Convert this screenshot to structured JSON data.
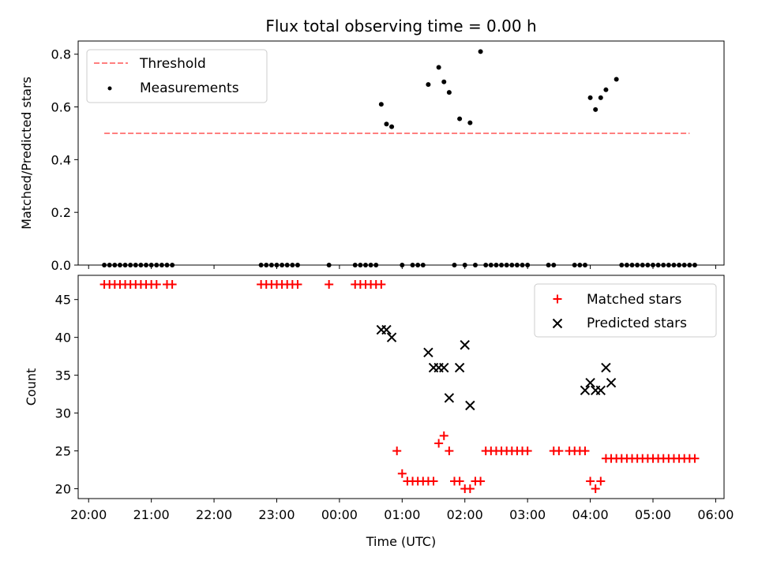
{
  "chart_data": [
    {
      "type": "scatter",
      "title": "Flux total observing time = 0.00 h",
      "xlabel": "",
      "ylabel": "Matched/Predicted stars",
      "ylim": [
        0,
        0.85
      ],
      "xlim": [
        "19:50",
        "06:08"
      ],
      "yticks": [
        "0.0",
        "0.2",
        "0.4",
        "0.6",
        "0.8"
      ],
      "ytick_values": [
        0,
        0.2,
        0.4,
        0.6,
        0.8
      ],
      "legend_position": "top-left",
      "threshold": {
        "name": "Threshold",
        "value": 0.5,
        "x_start": "20:15",
        "x_end": "05:35",
        "color": "#ff7f7f"
      },
      "series": [
        {
          "name": "Measurements",
          "color": "#000000",
          "marker": "dot",
          "x": [
            "20:15",
            "20:20",
            "20:25",
            "20:30",
            "20:35",
            "20:40",
            "20:45",
            "20:50",
            "20:55",
            "21:00",
            "21:05",
            "21:10",
            "21:15",
            "21:20",
            "22:45",
            "22:50",
            "22:55",
            "23:00",
            "23:05",
            "23:10",
            "23:15",
            "23:20",
            "23:50",
            "00:15",
            "00:20",
            "00:25",
            "00:30",
            "00:35",
            "00:40",
            "00:45",
            "00:50",
            "01:00",
            "01:10",
            "01:15",
            "01:20",
            "01:25",
            "01:35",
            "01:40",
            "01:45",
            "01:50",
            "01:55",
            "02:00",
            "02:05",
            "02:10",
            "02:15",
            "02:20",
            "02:25",
            "02:30",
            "02:35",
            "02:40",
            "02:45",
            "02:50",
            "02:55",
            "03:00",
            "03:20",
            "03:25",
            "03:45",
            "03:50",
            "03:55",
            "04:00",
            "04:05",
            "04:10",
            "04:15",
            "04:25",
            "04:30",
            "04:35",
            "04:40",
            "04:45",
            "04:50",
            "04:55",
            "05:00",
            "05:05",
            "05:10",
            "05:15",
            "05:20",
            "05:25",
            "05:30",
            "05:35",
            "05:40"
          ],
          "y": [
            0,
            0,
            0,
            0,
            0,
            0,
            0,
            0,
            0,
            0,
            0,
            0,
            0,
            0,
            0,
            0,
            0,
            0,
            0,
            0,
            0,
            0,
            0,
            0,
            0,
            0,
            0,
            0,
            0.61,
            0.535,
            0.525,
            0,
            0,
            0,
            0,
            0.685,
            0.75,
            0.695,
            0.655,
            0,
            0.555,
            0,
            0.54,
            0,
            0.81,
            0,
            0,
            0,
            0,
            0,
            0,
            0,
            0,
            0,
            0,
            0,
            0,
            0,
            0,
            0.635,
            0.59,
            0.635,
            0.665,
            0.705,
            0,
            0,
            0,
            0,
            0,
            0,
            0,
            0,
            0,
            0,
            0,
            0,
            0,
            0,
            0
          ]
        }
      ]
    },
    {
      "type": "scatter",
      "title": "",
      "xlabel": "Time (UTC)",
      "ylabel": "Count",
      "ylim": [
        18.7,
        48.2
      ],
      "xlim": [
        "19:50",
        "06:08"
      ],
      "yticks": [
        "20",
        "25",
        "30",
        "35",
        "40",
        "45"
      ],
      "ytick_values": [
        20,
        25,
        30,
        35,
        40,
        45
      ],
      "xticks": [
        "20:00",
        "21:00",
        "22:00",
        "23:00",
        "00:00",
        "01:00",
        "02:00",
        "03:00",
        "04:00",
        "05:00",
        "06:00"
      ],
      "legend_position": "top-right",
      "series": [
        {
          "name": "Matched stars",
          "color": "#ff0000",
          "marker": "plus",
          "x": [
            "20:15",
            "20:20",
            "20:25",
            "20:30",
            "20:35",
            "20:40",
            "20:45",
            "20:50",
            "20:55",
            "21:00",
            "21:05",
            "21:15",
            "21:20",
            "22:45",
            "22:50",
            "22:55",
            "23:00",
            "23:05",
            "23:10",
            "23:15",
            "23:20",
            "23:50",
            "00:15",
            "00:20",
            "00:25",
            "00:30",
            "00:35",
            "00:40",
            "00:55",
            "01:00",
            "01:05",
            "01:10",
            "01:15",
            "01:20",
            "01:25",
            "01:30",
            "01:35",
            "01:40",
            "01:45",
            "01:50",
            "01:55",
            "02:00",
            "02:05",
            "02:10",
            "02:15",
            "02:20",
            "02:25",
            "02:30",
            "02:35",
            "02:40",
            "02:45",
            "02:50",
            "02:55",
            "03:00",
            "03:25",
            "03:30",
            "03:40",
            "03:45",
            "03:50",
            "03:55",
            "04:00",
            "04:05",
            "04:10",
            "04:15",
            "04:20",
            "04:25",
            "04:30",
            "04:35",
            "04:40",
            "04:45",
            "04:50",
            "04:55",
            "05:00",
            "05:05",
            "05:10",
            "05:15",
            "05:20",
            "05:25",
            "05:30",
            "05:35",
            "05:40"
          ],
          "y": [
            47,
            47,
            47,
            47,
            47,
            47,
            47,
            47,
            47,
            47,
            47,
            47,
            47,
            47,
            47,
            47,
            47,
            47,
            47,
            47,
            47,
            47,
            47,
            47,
            47,
            47,
            47,
            47,
            25,
            22,
            21,
            21,
            21,
            21,
            21,
            21,
            26,
            27,
            25,
            21,
            21,
            20,
            20,
            21,
            21,
            25,
            25,
            25,
            25,
            25,
            25,
            25,
            25,
            25,
            25,
            25,
            25,
            25,
            25,
            25,
            21,
            20,
            21,
            24,
            24,
            24,
            24,
            24,
            24,
            24,
            24,
            24,
            24,
            24,
            24,
            24,
            24,
            24,
            24,
            24,
            24
          ]
        },
        {
          "name": "Predicted stars",
          "color": "#000000",
          "marker": "x",
          "x": [
            "00:40",
            "00:45",
            "00:50",
            "01:25",
            "01:30",
            "01:35",
            "01:40",
            "01:45",
            "01:55",
            "02:00",
            "02:05",
            "03:55",
            "04:00",
            "04:05",
            "04:10",
            "04:15",
            "04:20"
          ],
          "y": [
            41,
            41,
            40,
            38,
            36,
            36,
            36,
            32,
            36,
            39,
            31,
            33,
            34,
            33,
            33,
            36,
            34
          ]
        }
      ]
    }
  ]
}
